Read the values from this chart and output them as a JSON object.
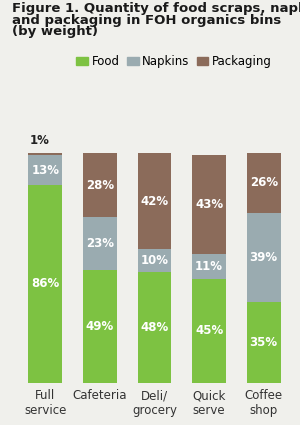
{
  "title_line1": "Figure 1. Quantity of food scraps, napkins",
  "title_line2": "and packaging in FOH organics bins",
  "title_line3": "(by weight)",
  "categories": [
    "Full\nservice",
    "Cafeteria",
    "Deli/\ngrocery",
    "Quick\nserve",
    "Coffee\nshop"
  ],
  "food": [
    86,
    49,
    48,
    45,
    35
  ],
  "napkins": [
    13,
    23,
    10,
    11,
    39
  ],
  "packaging": [
    1,
    28,
    42,
    43,
    26
  ],
  "food_color": "#7dc242",
  "napkins_color": "#9aabb0",
  "packaging_color": "#8b6b5a",
  "label_color": "#ffffff",
  "legend_labels": [
    "Food",
    "Napkins",
    "Packaging"
  ],
  "bar_width": 0.62,
  "ylim": [
    0,
    100
  ],
  "title_fontsize": 9.5,
  "label_fontsize": 8.5,
  "tick_fontsize": 8.5,
  "legend_fontsize": 8.5,
  "background_color": "#f0f0ec",
  "annot_1pct": "1%"
}
